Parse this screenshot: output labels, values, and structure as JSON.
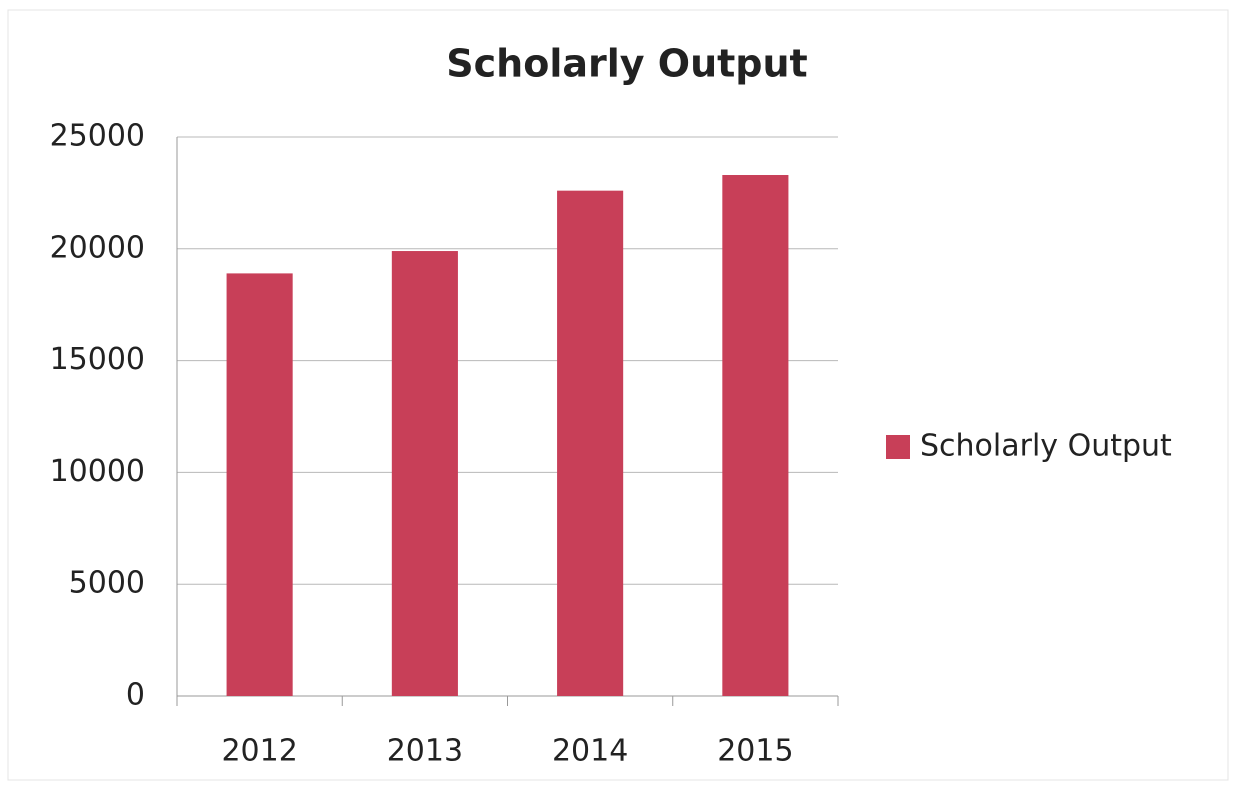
{
  "chart_data": {
    "type": "bar",
    "title": "Scholarly Output",
    "categories": [
      "2012",
      "2013",
      "2014",
      "2015"
    ],
    "series": [
      {
        "name": "Scholarly Output",
        "color": "#c83f58",
        "values": [
          18900,
          19900,
          22600,
          23300
        ]
      }
    ],
    "ylim": [
      0,
      25000
    ],
    "yticks": [
      0,
      5000,
      10000,
      15000,
      20000,
      25000
    ],
    "grid": true,
    "legend": "right"
  }
}
